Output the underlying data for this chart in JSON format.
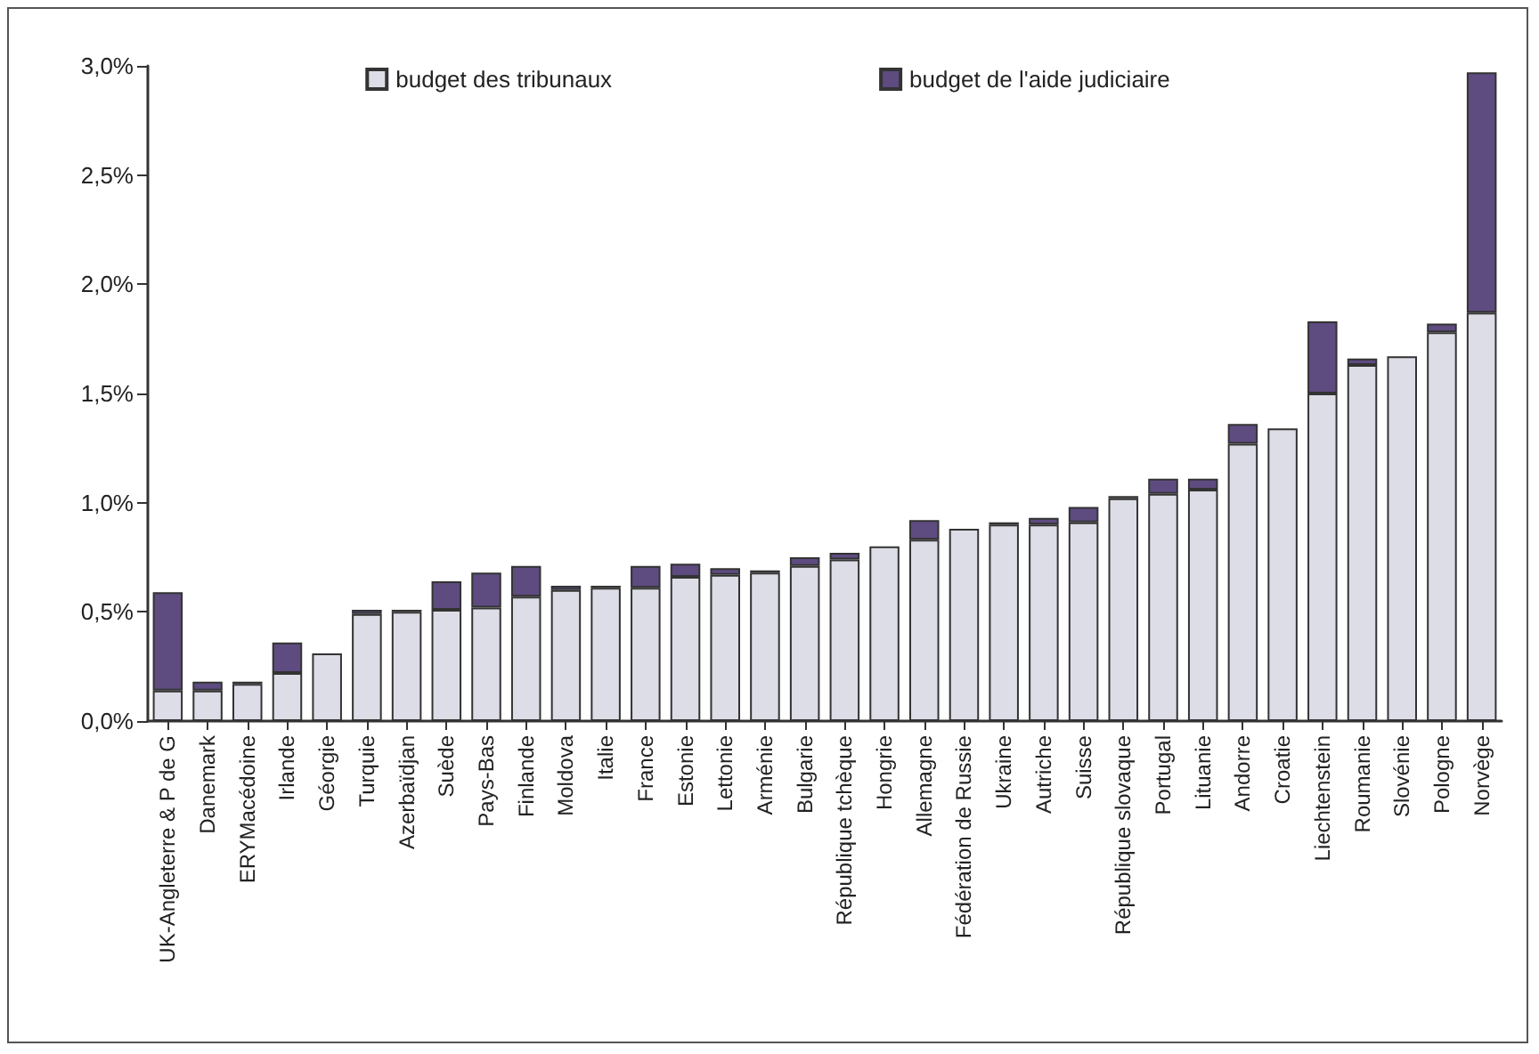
{
  "chart_data": {
    "type": "bar",
    "stacked": true,
    "categories": [
      "UK-Angleterre & P de G",
      "Danemark",
      "ERYMacédoine",
      "Irlande",
      "Géorgie",
      "Turquie",
      "Azerbaïdjan",
      "Suède",
      "Pays-Bas",
      "Finlande",
      "Moldova",
      "Italie",
      "France",
      "Estonie",
      "Lettonie",
      "Arménie",
      "Bulgarie",
      "République tchèque",
      "Hongrie",
      "Allemagne",
      "Fédération de Russie",
      "Ukraine",
      "Autriche",
      "Suisse",
      "République slovaque",
      "Portugal",
      "Lituanie",
      "Andorre",
      "Croatie",
      "Liechtenstein",
      "Roumanie",
      "Slovénie",
      "Pologne",
      "Norvège"
    ],
    "series": [
      {
        "name": "budget des tribunaux",
        "color": "#dcdde6",
        "values": [
          0.14,
          0.14,
          0.17,
          0.22,
          0.31,
          0.49,
          0.5,
          0.51,
          0.52,
          0.57,
          0.6,
          0.61,
          0.61,
          0.66,
          0.67,
          0.68,
          0.71,
          0.74,
          0.8,
          0.83,
          0.88,
          0.9,
          0.9,
          0.91,
          1.02,
          1.04,
          1.06,
          1.27,
          1.34,
          1.5,
          1.63,
          1.67,
          1.78,
          1.87
        ]
      },
      {
        "name": "budget de l'aide judiciaire",
        "color": "#5e4b80",
        "values": [
          0.45,
          0.04,
          0.01,
          0.14,
          null,
          0.02,
          0.01,
          0.13,
          0.16,
          0.14,
          0.02,
          0.01,
          0.1,
          0.06,
          0.03,
          0.01,
          0.04,
          0.03,
          null,
          0.09,
          null,
          0.01,
          0.03,
          0.07,
          0.01,
          0.07,
          0.05,
          0.09,
          null,
          0.33,
          0.03,
          null,
          0.04,
          1.1
        ]
      }
    ],
    "ylim": [
      0,
      3
    ],
    "yticks": [
      {
        "value": 0,
        "label": "0,0%"
      },
      {
        "value": 0.5,
        "label": "0,5%"
      },
      {
        "value": 1,
        "label": "1,0%"
      },
      {
        "value": 1.5,
        "label": "1,5%"
      },
      {
        "value": 2,
        "label": "2,0%"
      },
      {
        "value": 2.5,
        "label": "2,5%"
      },
      {
        "value": 3,
        "label": "3,0%"
      }
    ],
    "grid": false,
    "legend": "top"
  }
}
